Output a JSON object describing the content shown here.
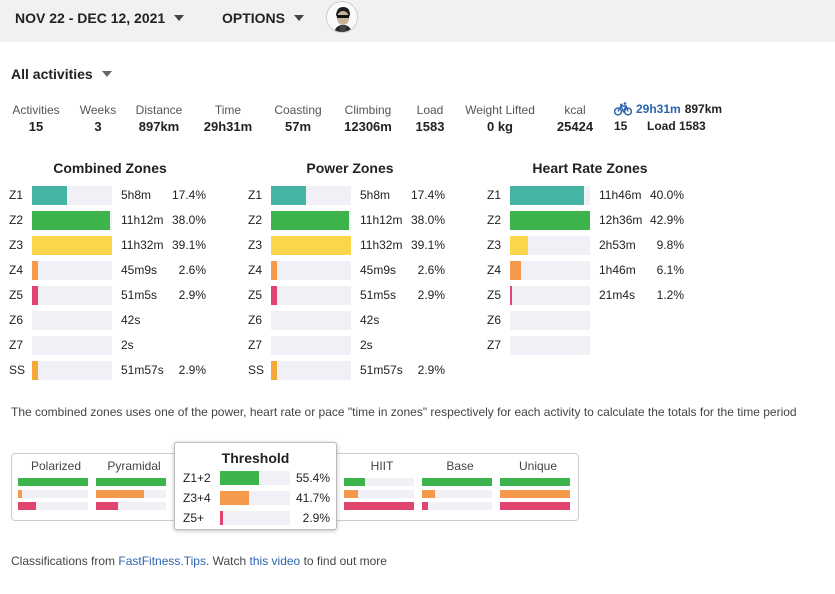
{
  "header": {
    "date_range": "NOV 22 - DEC 12, 2021",
    "options_label": "OPTIONS"
  },
  "filter": {
    "label": "All activities"
  },
  "stats": [
    {
      "label": "Activities",
      "value": "15"
    },
    {
      "label": "Weeks",
      "value": "3"
    },
    {
      "label": "Distance",
      "value": "897km"
    },
    {
      "label": "Time",
      "value": "29h31m"
    },
    {
      "label": "Coasting",
      "value": "57m"
    },
    {
      "label": "Climbing",
      "value": "12306m"
    },
    {
      "label": "Load",
      "value": "1583"
    },
    {
      "label": "Weight Lifted",
      "value": "0 kg"
    },
    {
      "label": "kcal",
      "value": "25424"
    }
  ],
  "sport_summary": {
    "icon": "bike-icon",
    "time": "29h31m",
    "distance": "897km",
    "count": "15",
    "load": "Load 1583"
  },
  "zones": {
    "combined": {
      "title": "Combined Zones",
      "rows": [
        {
          "zone": "Z1",
          "time": "5h8m",
          "pct": "17.4%",
          "fraction": 0.44,
          "color": "#45b5a3"
        },
        {
          "zone": "Z2",
          "time": "11h12m",
          "pct": "38.0%",
          "fraction": 0.97,
          "color": "#3cb44b"
        },
        {
          "zone": "Z3",
          "time": "11h32m",
          "pct": "39.1%",
          "fraction": 1.0,
          "color": "#fbd54a"
        },
        {
          "zone": "Z4",
          "time": "45m9s",
          "pct": "2.6%",
          "fraction": 0.07,
          "color": "#f59a4c"
        },
        {
          "zone": "Z5",
          "time": "51m5s",
          "pct": "2.9%",
          "fraction": 0.07,
          "color": "#e0446f"
        },
        {
          "zone": "Z6",
          "time": "42s",
          "pct": "",
          "fraction": 0,
          "color": "#e0446f"
        },
        {
          "zone": "Z7",
          "time": "2s",
          "pct": "",
          "fraction": 0,
          "color": "#e0446f"
        },
        {
          "zone": "SS",
          "time": "51m57s",
          "pct": "2.9%",
          "fraction": 0.07,
          "color": "#f5a93a"
        }
      ]
    },
    "power": {
      "title": "Power Zones",
      "rows": [
        {
          "zone": "Z1",
          "time": "5h8m",
          "pct": "17.4%",
          "fraction": 0.44,
          "color": "#45b5a3"
        },
        {
          "zone": "Z2",
          "time": "11h12m",
          "pct": "38.0%",
          "fraction": 0.97,
          "color": "#3cb44b"
        },
        {
          "zone": "Z3",
          "time": "11h32m",
          "pct": "39.1%",
          "fraction": 1.0,
          "color": "#fbd54a"
        },
        {
          "zone": "Z4",
          "time": "45m9s",
          "pct": "2.6%",
          "fraction": 0.07,
          "color": "#f59a4c"
        },
        {
          "zone": "Z5",
          "time": "51m5s",
          "pct": "2.9%",
          "fraction": 0.07,
          "color": "#e0446f"
        },
        {
          "zone": "Z6",
          "time": "42s",
          "pct": "",
          "fraction": 0,
          "color": "#e0446f"
        },
        {
          "zone": "Z7",
          "time": "2s",
          "pct": "",
          "fraction": 0,
          "color": "#e0446f"
        },
        {
          "zone": "SS",
          "time": "51m57s",
          "pct": "2.9%",
          "fraction": 0.07,
          "color": "#f5a93a"
        }
      ]
    },
    "heart": {
      "title": "Heart Rate Zones",
      "rows": [
        {
          "zone": "Z1",
          "time": "11h46m",
          "pct": "40.0%",
          "fraction": 0.93,
          "color": "#45b5a3"
        },
        {
          "zone": "Z2",
          "time": "12h36m",
          "pct": "42.9%",
          "fraction": 1.0,
          "color": "#3cb44b"
        },
        {
          "zone": "Z3",
          "time": "2h53m",
          "pct": "9.8%",
          "fraction": 0.23,
          "color": "#fbd54a"
        },
        {
          "zone": "Z4",
          "time": "1h46m",
          "pct": "6.1%",
          "fraction": 0.14,
          "color": "#f59a4c"
        },
        {
          "zone": "Z5",
          "time": "21m4s",
          "pct": "1.2%",
          "fraction": 0.03,
          "color": "#e0446f"
        },
        {
          "zone": "Z6",
          "time": "",
          "pct": "",
          "fraction": 0,
          "color": "#e0446f"
        },
        {
          "zone": "Z7",
          "time": "",
          "pct": "",
          "fraction": 0,
          "color": "#e0446f"
        }
      ]
    }
  },
  "note": "The combined zones uses one of the power, heart rate or pace \"time in zones\" respectively for each activity to calculate the totals for the time period",
  "classifications": [
    {
      "name": "Polarized",
      "bars": [
        1.0,
        0.06,
        0.25
      ]
    },
    {
      "name": "Pyramidal",
      "bars": [
        1.0,
        0.68,
        0.32
      ]
    },
    {
      "name": "Threshold",
      "bars": [
        0.56,
        0.42,
        0.03
      ]
    },
    {
      "name": "HIIT",
      "bars": [
        0.3,
        0.2,
        1.0
      ]
    },
    {
      "name": "Base",
      "bars": [
        1.0,
        0.18,
        0.08
      ]
    },
    {
      "name": "Unique",
      "bars": [
        1.0,
        1.0,
        1.0
      ]
    }
  ],
  "class_colors": [
    "#3cb44b",
    "#f59a4c",
    "#e0446f"
  ],
  "tooltip": {
    "title": "Threshold",
    "rows": [
      {
        "label": "Z1+2",
        "pct": "55.4%",
        "fraction": 0.554,
        "color": "#3cb44b"
      },
      {
        "label": "Z3+4",
        "pct": "41.7%",
        "fraction": 0.417,
        "color": "#f59a4c"
      },
      {
        "label": "Z5+",
        "pct": "2.9%",
        "fraction": 0.029,
        "color": "#e0446f"
      }
    ]
  },
  "footer": {
    "prefix": "Classifications from ",
    "link1": "FastFitness.Tips",
    "middle": ". Watch ",
    "link2": "this video",
    "suffix": " to find out more"
  }
}
